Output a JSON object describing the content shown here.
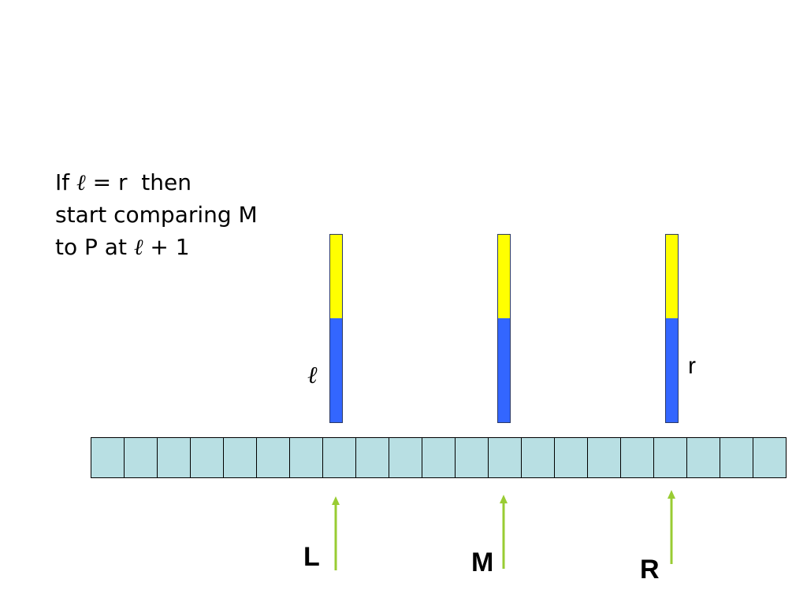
{
  "caption": {
    "line1_prefix": "If ",
    "line1_ell": "ℓ",
    "line1_suffix": " = r  then",
    "line2": "start comparing M",
    "line3_prefix": "to P at ",
    "line3_ell": "ℓ",
    "line3_suffix": " + 1"
  },
  "bars": [
    {
      "id": "L",
      "top_color": "#ffff00",
      "bottom_color": "#3366ff",
      "side_label": "ℓ"
    },
    {
      "id": "M",
      "top_color": "#ffff00",
      "bottom_color": "#3366ff",
      "side_label": ""
    },
    {
      "id": "R",
      "top_color": "#ffff00",
      "bottom_color": "#3366ff",
      "side_label": "r"
    }
  ],
  "array": {
    "cell_count": 21,
    "cell_color": "#b8dfe3",
    "border_color": "#000000"
  },
  "pointers": [
    {
      "label": "L",
      "arrow_color": "#99cc33"
    },
    {
      "label": "M",
      "arrow_color": "#99cc33"
    },
    {
      "label": "R",
      "arrow_color": "#99cc33"
    }
  ]
}
